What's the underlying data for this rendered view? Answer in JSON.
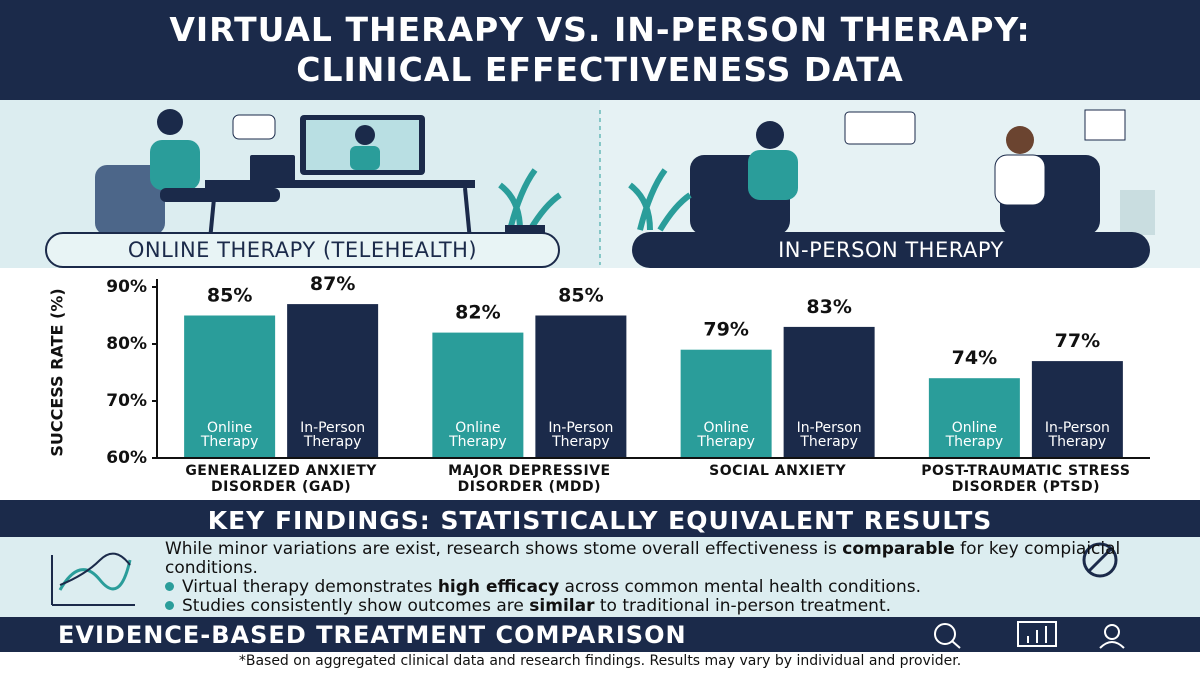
{
  "header": {
    "title": "VIRTUAL THERAPY VS. IN-PERSON THERAPY: CLINICAL EFFECTIVENESS DATA"
  },
  "panels": {
    "online": "ONLINE THERAPY (TELEHEALTH)",
    "in_person": "IN-PERSON THERAPY"
  },
  "chart_data": {
    "type": "bar",
    "y_label": "SUCCESS RATE (%)",
    "categories": [
      "GENERALIZED ANXIETY DISORDER (GAD)",
      "MAJOR DEPRESSIVE DISORDER (MDD)",
      "SOCIAL ANXIETY",
      "POST-TRAUMATIC STRESS DISORDER (PTSD)"
    ],
    "series": [
      {
        "name": "Online Therapy",
        "color": "#2a9d9a",
        "values": [
          85,
          82,
          79,
          74
        ],
        "value_labels": [
          "85%",
          "82%",
          "79%",
          "74%"
        ]
      },
      {
        "name": "In-Person Therapy",
        "color": "#1b2a4a",
        "values": [
          87,
          85,
          83,
          77
        ],
        "value_labels": [
          "87%",
          "85%",
          "83%",
          "77%"
        ]
      }
    ],
    "ylim": [
      60,
      90
    ],
    "yticks": [
      {
        "value": 60,
        "label": "60%"
      },
      {
        "value": 70,
        "label": "70%"
      },
      {
        "value": 80,
        "label": "80%"
      },
      {
        "value": 90,
        "label": "90%"
      }
    ],
    "grid": false
  },
  "findings": {
    "title": "KEY FINDINGS: STATISTICALLY EQUIVALENT RESULTS",
    "intro": [
      "While minor variations are exist, research shows stome overall effectiveness is ",
      "comparable",
      " for key compiaicial conditions."
    ],
    "bullets": [
      [
        "Virtual therapy demonstrates ",
        "high efficacy",
        " across common mental health conditions."
      ],
      [
        "Studies consistently show outcomes are ",
        "similar",
        " to traditional in-person treatment."
      ]
    ]
  },
  "banner": {
    "title": "EVIDENCE-BASED TREATMENT COMPARISON"
  },
  "footer": {
    "note": "*Based on aggregated clinical data and research findings. Results may vary by individual and provider."
  }
}
